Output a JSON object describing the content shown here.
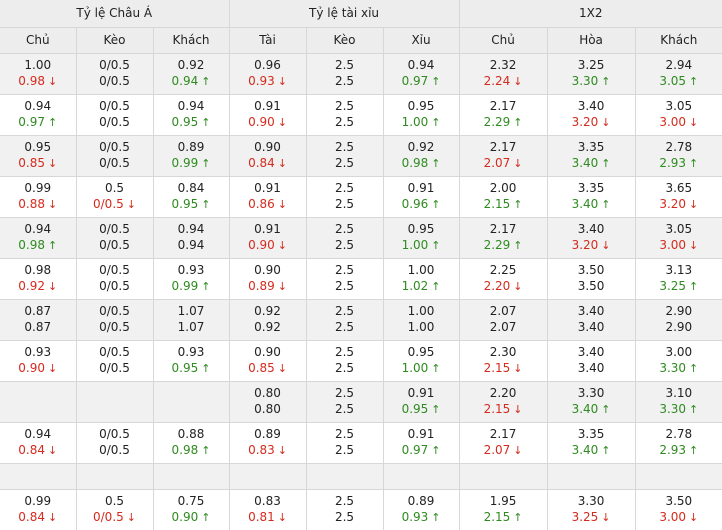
{
  "headers": {
    "groups": [
      "Tỷ lệ Châu Á",
      "Tỷ lệ tài xỉu",
      "1X2"
    ],
    "columns": [
      "Chủ",
      "Kèo",
      "Khách",
      "Tài",
      "Kèo",
      "Xỉu",
      "Chủ",
      "Hòa",
      "Khách"
    ]
  },
  "arrows": {
    "up": "↑",
    "down": "↓"
  },
  "blocks": [
    {
      "rows": [
        [
          {
            "v": "1.00"
          },
          {
            "v": "0/0.5"
          },
          {
            "v": "0.92"
          },
          {
            "v": "0.96"
          },
          {
            "v": "2.5"
          },
          {
            "v": "0.94"
          },
          {
            "v": "2.32"
          },
          {
            "v": "3.25"
          },
          {
            "v": "2.94"
          }
        ],
        [
          {
            "v": "0.98",
            "d": "down"
          },
          {
            "v": "0/0.5"
          },
          {
            "v": "0.94",
            "d": "up"
          },
          {
            "v": "0.93",
            "d": "down"
          },
          {
            "v": "2.5"
          },
          {
            "v": "0.97",
            "d": "up"
          },
          {
            "v": "2.24",
            "d": "down"
          },
          {
            "v": "3.30",
            "d": "up"
          },
          {
            "v": "3.05",
            "d": "up"
          }
        ]
      ]
    },
    {
      "rows": [
        [
          {
            "v": "0.94"
          },
          {
            "v": "0/0.5"
          },
          {
            "v": "0.94"
          },
          {
            "v": "0.91"
          },
          {
            "v": "2.5"
          },
          {
            "v": "0.95"
          },
          {
            "v": "2.17"
          },
          {
            "v": "3.40"
          },
          {
            "v": "3.05"
          }
        ],
        [
          {
            "v": "0.97",
            "d": "up"
          },
          {
            "v": "0/0.5"
          },
          {
            "v": "0.95",
            "d": "up"
          },
          {
            "v": "0.90",
            "d": "down"
          },
          {
            "v": "2.5"
          },
          {
            "v": "1.00",
            "d": "up"
          },
          {
            "v": "2.29",
            "d": "up"
          },
          {
            "v": "3.20",
            "d": "down"
          },
          {
            "v": "3.00",
            "d": "down"
          }
        ]
      ]
    },
    {
      "rows": [
        [
          {
            "v": "0.95"
          },
          {
            "v": "0/0.5"
          },
          {
            "v": "0.89"
          },
          {
            "v": "0.90"
          },
          {
            "v": "2.5"
          },
          {
            "v": "0.92"
          },
          {
            "v": "2.17"
          },
          {
            "v": "3.35"
          },
          {
            "v": "2.78"
          }
        ],
        [
          {
            "v": "0.85",
            "d": "down"
          },
          {
            "v": "0/0.5"
          },
          {
            "v": "0.99",
            "d": "up"
          },
          {
            "v": "0.84",
            "d": "down"
          },
          {
            "v": "2.5"
          },
          {
            "v": "0.98",
            "d": "up"
          },
          {
            "v": "2.07",
            "d": "down"
          },
          {
            "v": "3.40",
            "d": "up"
          },
          {
            "v": "2.93",
            "d": "up"
          }
        ]
      ]
    },
    {
      "rows": [
        [
          {
            "v": "0.99"
          },
          {
            "v": "0.5"
          },
          {
            "v": "0.84"
          },
          {
            "v": "0.91"
          },
          {
            "v": "2.5"
          },
          {
            "v": "0.91"
          },
          {
            "v": "2.00"
          },
          {
            "v": "3.35"
          },
          {
            "v": "3.65"
          }
        ],
        [
          {
            "v": "0.88",
            "d": "down"
          },
          {
            "v": "0/0.5",
            "d": "down"
          },
          {
            "v": "0.95",
            "d": "up"
          },
          {
            "v": "0.86",
            "d": "down"
          },
          {
            "v": "2.5"
          },
          {
            "v": "0.96",
            "d": "up"
          },
          {
            "v": "2.15",
            "d": "up"
          },
          {
            "v": "3.40",
            "d": "up"
          },
          {
            "v": "3.20",
            "d": "down"
          }
        ]
      ]
    },
    {
      "rows": [
        [
          {
            "v": "0.94"
          },
          {
            "v": "0/0.5"
          },
          {
            "v": "0.94"
          },
          {
            "v": "0.91"
          },
          {
            "v": "2.5"
          },
          {
            "v": "0.95"
          },
          {
            "v": "2.17"
          },
          {
            "v": "3.40"
          },
          {
            "v": "3.05"
          }
        ],
        [
          {
            "v": "0.98",
            "d": "up"
          },
          {
            "v": "0/0.5"
          },
          {
            "v": "0.94"
          },
          {
            "v": "0.90",
            "d": "down"
          },
          {
            "v": "2.5"
          },
          {
            "v": "1.00",
            "d": "up"
          },
          {
            "v": "2.29",
            "d": "up"
          },
          {
            "v": "3.20",
            "d": "down"
          },
          {
            "v": "3.00",
            "d": "down"
          }
        ]
      ]
    },
    {
      "rows": [
        [
          {
            "v": "0.98"
          },
          {
            "v": "0/0.5"
          },
          {
            "v": "0.93"
          },
          {
            "v": "0.90"
          },
          {
            "v": "2.5"
          },
          {
            "v": "1.00"
          },
          {
            "v": "2.25"
          },
          {
            "v": "3.50"
          },
          {
            "v": "3.13"
          }
        ],
        [
          {
            "v": "0.92",
            "d": "down"
          },
          {
            "v": "0/0.5"
          },
          {
            "v": "0.99",
            "d": "up"
          },
          {
            "v": "0.89",
            "d": "down"
          },
          {
            "v": "2.5"
          },
          {
            "v": "1.02",
            "d": "up"
          },
          {
            "v": "2.20",
            "d": "down"
          },
          {
            "v": "3.50"
          },
          {
            "v": "3.25",
            "d": "up"
          }
        ]
      ]
    },
    {
      "rows": [
        [
          {
            "v": "0.87"
          },
          {
            "v": "0/0.5"
          },
          {
            "v": "1.07"
          },
          {
            "v": "0.92"
          },
          {
            "v": "2.5"
          },
          {
            "v": "1.00"
          },
          {
            "v": "2.07"
          },
          {
            "v": "3.40"
          },
          {
            "v": "2.90"
          }
        ],
        [
          {
            "v": "0.87"
          },
          {
            "v": "0/0.5"
          },
          {
            "v": "1.07"
          },
          {
            "v": "0.92"
          },
          {
            "v": "2.5"
          },
          {
            "v": "1.00"
          },
          {
            "v": "2.07"
          },
          {
            "v": "3.40"
          },
          {
            "v": "2.90"
          }
        ]
      ]
    },
    {
      "rows": [
        [
          {
            "v": "0.93"
          },
          {
            "v": "0/0.5"
          },
          {
            "v": "0.93"
          },
          {
            "v": "0.90"
          },
          {
            "v": "2.5"
          },
          {
            "v": "0.95"
          },
          {
            "v": "2.30"
          },
          {
            "v": "3.40"
          },
          {
            "v": "3.00"
          }
        ],
        [
          {
            "v": "0.90",
            "d": "down"
          },
          {
            "v": "0/0.5"
          },
          {
            "v": "0.95",
            "d": "up"
          },
          {
            "v": "0.85",
            "d": "down"
          },
          {
            "v": "2.5"
          },
          {
            "v": "1.00",
            "d": "up"
          },
          {
            "v": "2.15",
            "d": "down"
          },
          {
            "v": "3.40"
          },
          {
            "v": "3.30",
            "d": "up"
          }
        ]
      ]
    },
    {
      "rows": [
        [
          {
            "v": ""
          },
          {
            "v": ""
          },
          {
            "v": ""
          },
          {
            "v": "0.80"
          },
          {
            "v": "2.5"
          },
          {
            "v": "0.91"
          },
          {
            "v": "2.20"
          },
          {
            "v": "3.30"
          },
          {
            "v": "3.10"
          }
        ],
        [
          {
            "v": ""
          },
          {
            "v": ""
          },
          {
            "v": ""
          },
          {
            "v": "0.80"
          },
          {
            "v": "2.5"
          },
          {
            "v": "0.95",
            "d": "up"
          },
          {
            "v": "2.15",
            "d": "down"
          },
          {
            "v": "3.40",
            "d": "up"
          },
          {
            "v": "3.30",
            "d": "up"
          }
        ]
      ]
    },
    {
      "rows": [
        [
          {
            "v": "0.94"
          },
          {
            "v": "0/0.5"
          },
          {
            "v": "0.88"
          },
          {
            "v": "0.89"
          },
          {
            "v": "2.5"
          },
          {
            "v": "0.91"
          },
          {
            "v": "2.17"
          },
          {
            "v": "3.35"
          },
          {
            "v": "2.78"
          }
        ],
        [
          {
            "v": "0.84",
            "d": "down"
          },
          {
            "v": "0/0.5"
          },
          {
            "v": "0.98",
            "d": "up"
          },
          {
            "v": "0.83",
            "d": "down"
          },
          {
            "v": "2.5"
          },
          {
            "v": "0.97",
            "d": "up"
          },
          {
            "v": "2.07",
            "d": "down"
          },
          {
            "v": "3.40",
            "d": "up"
          },
          {
            "v": "2.93",
            "d": "up"
          }
        ]
      ]
    },
    {
      "gap": true
    },
    {
      "rows": [
        [
          {
            "v": "0.99"
          },
          {
            "v": "0.5"
          },
          {
            "v": "0.75"
          },
          {
            "v": "0.83"
          },
          {
            "v": "2.5"
          },
          {
            "v": "0.89"
          },
          {
            "v": "1.95"
          },
          {
            "v": "3.30"
          },
          {
            "v": "3.50"
          }
        ],
        [
          {
            "v": "0.84",
            "d": "down"
          },
          {
            "v": "0/0.5",
            "d": "down"
          },
          {
            "v": "0.90",
            "d": "up"
          },
          {
            "v": "0.81",
            "d": "down"
          },
          {
            "v": "2.5"
          },
          {
            "v": "0.93",
            "d": "up"
          },
          {
            "v": "2.15",
            "d": "up"
          },
          {
            "v": "3.25",
            "d": "down"
          },
          {
            "v": "3.00",
            "d": "down"
          }
        ]
      ]
    }
  ]
}
